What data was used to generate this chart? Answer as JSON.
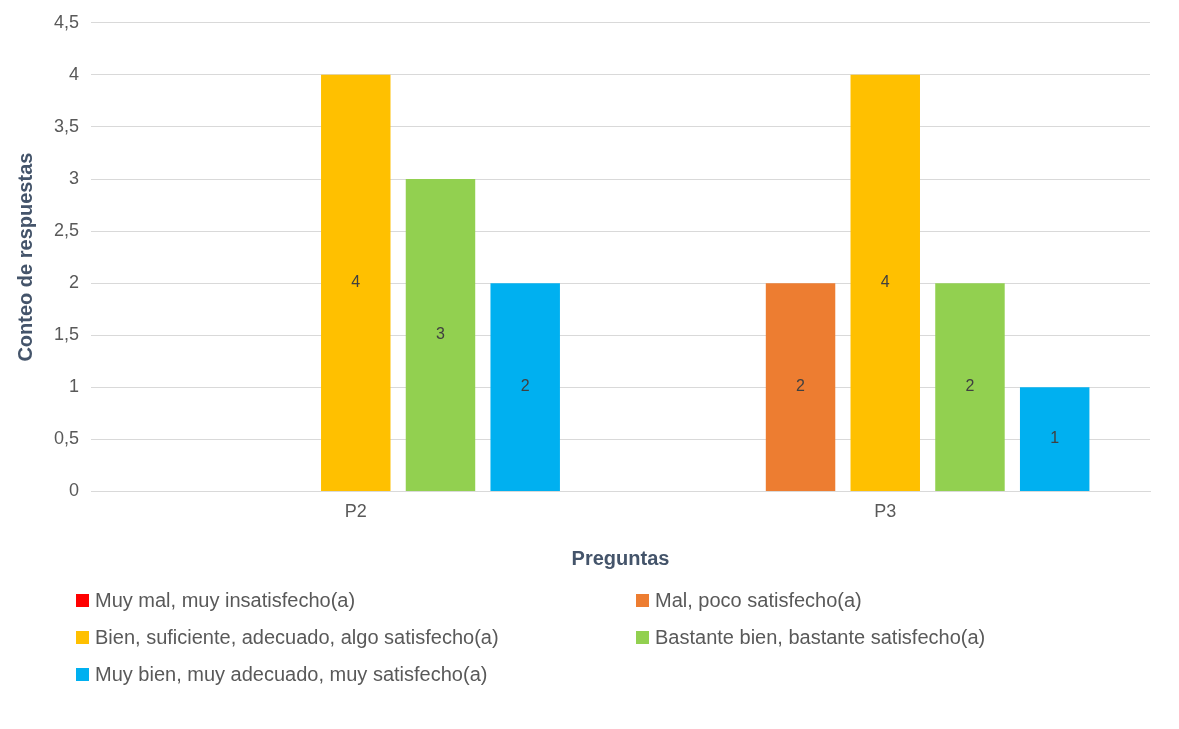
{
  "chart_data": {
    "type": "bar",
    "xlabel": "Preguntas",
    "ylabel": "Conteo de respuestas",
    "categories": [
      "P2",
      "P3"
    ],
    "series": [
      {
        "name": "Muy mal, muy insatisfecho(a)",
        "color": "#ff0000",
        "values": [
          null,
          null
        ]
      },
      {
        "name": "Mal, poco satisfecho(a)",
        "color": "#ed7d31",
        "values": [
          null,
          2
        ]
      },
      {
        "name": "Bien, suficiente, adecuado, algo satisfecho(a)",
        "color": "#ffc000",
        "values": [
          4,
          4
        ]
      },
      {
        "name": "Bastante bien, bastante satisfecho(a)",
        "color": "#92d050",
        "values": [
          3,
          2
        ]
      },
      {
        "name": "Muy bien, muy adecuado, muy satisfecho(a)",
        "color": "#00b0f0",
        "values": [
          2,
          1
        ]
      }
    ],
    "ylim": [
      0,
      4.5
    ],
    "yticks": [
      0,
      {
        "value": 0.5,
        "label": "0,5"
      },
      1,
      {
        "value": 1.5,
        "label": "1,5"
      },
      2,
      {
        "value": 2.5,
        "label": "2,5"
      },
      3,
      {
        "value": 3.5,
        "label": "3,5"
      },
      4,
      {
        "value": 4.5,
        "label": "4,5"
      }
    ],
    "grid": "y",
    "legend": "bottom",
    "data_labels": true
  }
}
